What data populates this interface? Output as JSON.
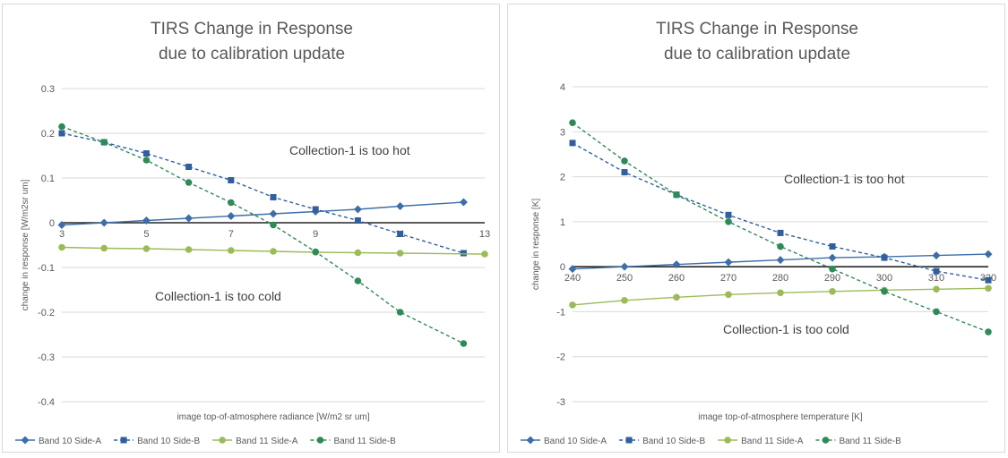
{
  "chart_data": [
    {
      "type": "line",
      "title": [
        "TIRS Change in Response",
        "due to calibration update"
      ],
      "xlabel": "image top-of-atmosphere radiance [W/m2 sr um]",
      "ylabel": "change in response [W/m2sr um]",
      "xlim": [
        3,
        13
      ],
      "ylim": [
        -0.4,
        0.3
      ],
      "xticks": [
        "3",
        "5",
        "7",
        "9",
        "11",
        "13"
      ],
      "yticks": [
        "0.3",
        "0.2",
        "0.1",
        "0",
        "-0.1",
        "-0.2",
        "-0.3",
        "-0.4"
      ],
      "grid": true,
      "legend_position": "bottom",
      "annotations": [
        "Collection-1 is too hot",
        "Collection-1 is too cold"
      ],
      "series": [
        {
          "name": "Band 10 Side-A",
          "color": "#3e6ea8",
          "dashed": false,
          "marker": "diamond",
          "x": [
            3,
            4,
            5,
            6,
            7,
            8,
            9,
            10,
            11,
            12.5
          ],
          "y": [
            -0.005,
            0.0,
            0.005,
            0.01,
            0.015,
            0.02,
            0.025,
            0.03,
            0.037,
            0.046
          ]
        },
        {
          "name": "Band 10 Side-B",
          "color": "#2f5f9e",
          "dashed": true,
          "marker": "square",
          "x": [
            3,
            4,
            5,
            6,
            7,
            8,
            9,
            10,
            11,
            12.5
          ],
          "y": [
            0.2,
            0.18,
            0.155,
            0.125,
            0.095,
            0.057,
            0.03,
            0.005,
            -0.025,
            -0.068
          ]
        },
        {
          "name": "Band 11 Side-A",
          "color": "#9bbb59",
          "dashed": false,
          "marker": "circle",
          "x": [
            3,
            4,
            5,
            6,
            7,
            8,
            9,
            10,
            11,
            13
          ],
          "y": [
            -0.055,
            -0.057,
            -0.058,
            -0.06,
            -0.062,
            -0.064,
            -0.066,
            -0.067,
            -0.068,
            -0.07
          ]
        },
        {
          "name": "Band 11 Side-B",
          "color": "#2e8b57",
          "dashed": true,
          "marker": "circle",
          "x": [
            3,
            4,
            5,
            6,
            7,
            8,
            9,
            10,
            11,
            12.5
          ],
          "y": [
            0.215,
            0.18,
            0.14,
            0.09,
            0.045,
            -0.005,
            -0.065,
            -0.13,
            -0.2,
            -0.27
          ]
        }
      ]
    },
    {
      "type": "line",
      "title": [
        "TIRS Change in Response",
        "due to calibration update"
      ],
      "xlabel": "image top-of-atmosphere temperature [K]",
      "ylabel": "change in response [K]",
      "xlim": [
        240,
        320
      ],
      "ylim": [
        -3,
        4
      ],
      "xticks": [
        "240",
        "250",
        "260",
        "270",
        "280",
        "290",
        "300",
        "310",
        "320"
      ],
      "yticks": [
        "4",
        "3",
        "2",
        "1",
        "0",
        "-1",
        "-2",
        "-3"
      ],
      "grid": true,
      "legend_position": "bottom",
      "annotations": [
        "Collection-1 is too hot",
        "Collection-1 is too cold"
      ],
      "series": [
        {
          "name": "Band 10 Side-A",
          "color": "#3e6ea8",
          "dashed": false,
          "marker": "diamond",
          "x": [
            240,
            250,
            260,
            270,
            280,
            290,
            300,
            310,
            320
          ],
          "y": [
            -0.05,
            0.0,
            0.05,
            0.1,
            0.15,
            0.2,
            0.22,
            0.25,
            0.28
          ]
        },
        {
          "name": "Band 10 Side-B",
          "color": "#2f5f9e",
          "dashed": true,
          "marker": "square",
          "x": [
            240,
            250,
            260,
            270,
            280,
            290,
            300,
            310,
            320
          ],
          "y": [
            2.75,
            2.1,
            1.6,
            1.15,
            0.75,
            0.45,
            0.2,
            -0.1,
            -0.3
          ]
        },
        {
          "name": "Band 11 Side-A",
          "color": "#9bbb59",
          "dashed": false,
          "marker": "circle",
          "x": [
            240,
            250,
            260,
            270,
            280,
            290,
            300,
            310,
            320
          ],
          "y": [
            -0.85,
            -0.75,
            -0.68,
            -0.62,
            -0.58,
            -0.55,
            -0.52,
            -0.5,
            -0.48
          ]
        },
        {
          "name": "Band 11 Side-B",
          "color": "#2e8b57",
          "dashed": true,
          "marker": "circle",
          "x": [
            240,
            250,
            260,
            270,
            280,
            290,
            300,
            310,
            320
          ],
          "y": [
            3.2,
            2.35,
            1.6,
            1.0,
            0.45,
            -0.05,
            -0.55,
            -1.0,
            -1.45
          ]
        }
      ]
    }
  ]
}
